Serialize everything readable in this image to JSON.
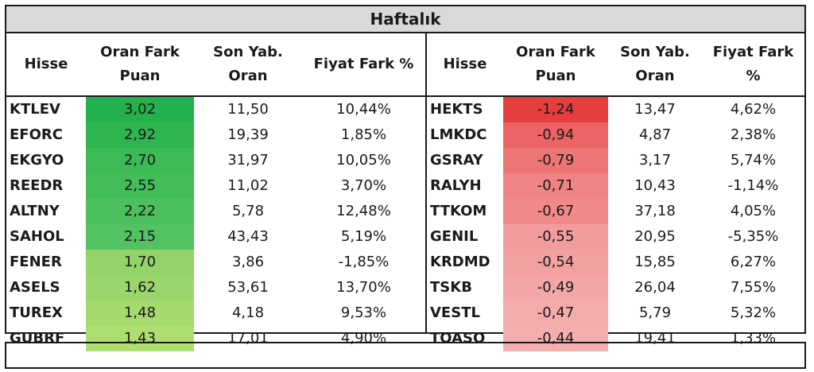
{
  "title": "Haftalık",
  "left_headers": [
    "Hisse",
    "Oran Fark\nPuan",
    "Son Yab.\nOran",
    "Fiyat Fark %"
  ],
  "right_headers": [
    "Hisse",
    "Oran Fark\nPuan",
    "Son Yab.\nOran",
    "Fiyat Fark\n%"
  ],
  "colors": {
    "green_shades": [
      "#22b14c",
      "#2fb550",
      "#3bba56",
      "#43bd5a",
      "#4cc05e",
      "#52c262",
      "#92d36a",
      "#99d66c",
      "#a4da6e",
      "#aedd70"
    ],
    "red_shades": [
      "#e53e3e",
      "#ec6466",
      "#ee7575",
      "#f08384",
      "#f18989",
      "#f29c9d",
      "#f3a0a1",
      "#f4a7a8",
      "#f5aaab",
      "#f5aeae"
    ]
  },
  "left_rows": [
    {
      "stock": "KTLEV",
      "diff": "3,02",
      "ratio": "11,50",
      "price": "10,44%"
    },
    {
      "stock": "EFORC",
      "diff": "2,92",
      "ratio": "19,39",
      "price": "1,85%"
    },
    {
      "stock": "EKGYO",
      "diff": "2,70",
      "ratio": "31,97",
      "price": "10,05%"
    },
    {
      "stock": "REEDR",
      "diff": "2,55",
      "ratio": "11,02",
      "price": "3,70%"
    },
    {
      "stock": "ALTNY",
      "diff": "2,22",
      "ratio": "5,78",
      "price": "12,48%"
    },
    {
      "stock": "SAHOL",
      "diff": "2,15",
      "ratio": "43,43",
      "price": "5,19%"
    },
    {
      "stock": "FENER",
      "diff": "1,70",
      "ratio": "3,86",
      "price": "-1,85%"
    },
    {
      "stock": "ASELS",
      "diff": "1,62",
      "ratio": "53,61",
      "price": "13,70%"
    },
    {
      "stock": "TUREX",
      "diff": "1,48",
      "ratio": "4,18",
      "price": "9,53%"
    },
    {
      "stock": "GUBRF",
      "diff": "1,43",
      "ratio": "17,01",
      "price": "4,90%"
    }
  ],
  "right_rows": [
    {
      "stock": "HEKTS",
      "diff": "-1,24",
      "ratio": "13,47",
      "price": "4,62%"
    },
    {
      "stock": "LMKDC",
      "diff": "-0,94",
      "ratio": "4,87",
      "price": "2,38%"
    },
    {
      "stock": "GSRAY",
      "diff": "-0,79",
      "ratio": "3,17",
      "price": "5,74%"
    },
    {
      "stock": "RALYH",
      "diff": "-0,71",
      "ratio": "10,43",
      "price": "-1,14%"
    },
    {
      "stock": "TTKOM",
      "diff": "-0,67",
      "ratio": "37,18",
      "price": "4,05%"
    },
    {
      "stock": "GENIL",
      "diff": "-0,55",
      "ratio": "20,95",
      "price": "-5,35%"
    },
    {
      "stock": "KRDMD",
      "diff": "-0,54",
      "ratio": "15,85",
      "price": "6,27%"
    },
    {
      "stock": "TSKB",
      "diff": "-0,49",
      "ratio": "26,04",
      "price": "7,55%"
    },
    {
      "stock": "VESTL",
      "diff": "-0,47",
      "ratio": "5,79",
      "price": "5,32%"
    },
    {
      "stock": "TOASO",
      "diff": "-0,44",
      "ratio": "19,41",
      "price": "1,33%"
    }
  ]
}
